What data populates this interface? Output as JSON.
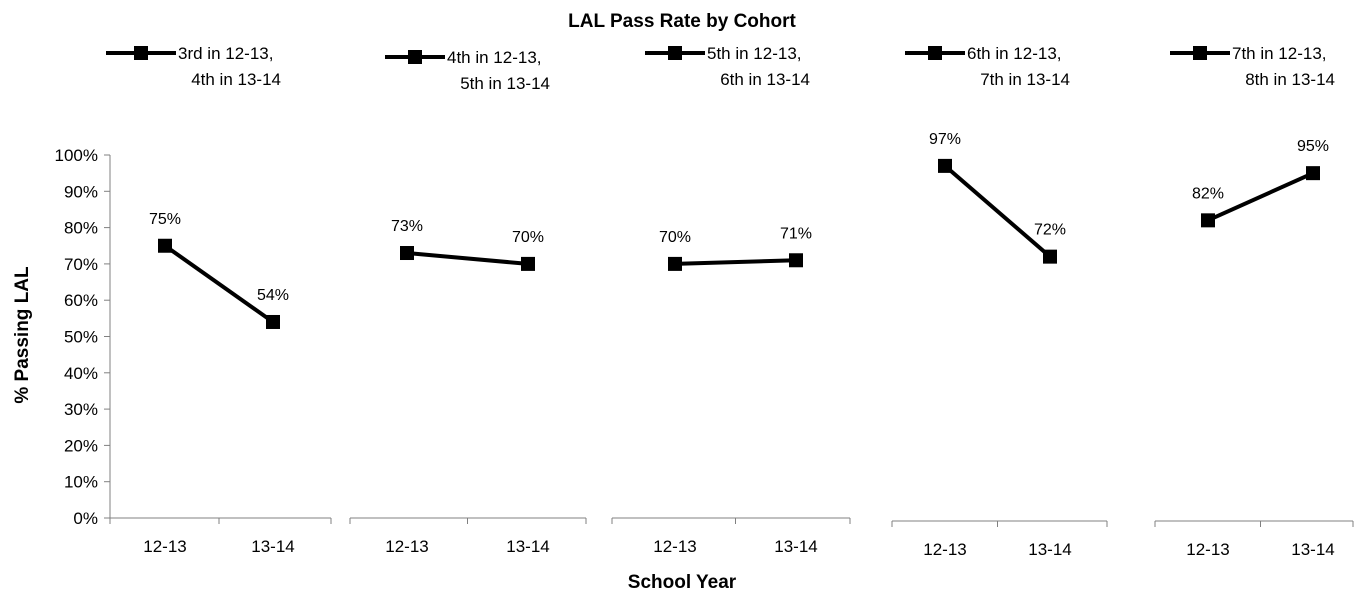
{
  "chart_data": {
    "type": "line",
    "title": "LAL Pass Rate by Cohort",
    "xlabel": "School Year",
    "ylabel": "% Passing LAL",
    "ylim": [
      0,
      100
    ],
    "y_ticks": [
      "0%",
      "10%",
      "20%",
      "30%",
      "40%",
      "50%",
      "60%",
      "70%",
      "80%",
      "90%",
      "100%"
    ],
    "categories": [
      "12-13",
      "13-14"
    ],
    "series": [
      {
        "name": [
          "3rd in 12-13,",
          "4th in 13-14"
        ],
        "values": [
          75,
          54
        ],
        "labels": [
          "75%",
          "54%"
        ]
      },
      {
        "name": [
          "4th in 12-13,",
          "5th in 13-14"
        ],
        "values": [
          73,
          70
        ],
        "labels": [
          "73%",
          "70%"
        ]
      },
      {
        "name": [
          "5th in 12-13,",
          "6th in 13-14"
        ],
        "values": [
          70,
          71
        ],
        "labels": [
          "70%",
          "71%"
        ]
      },
      {
        "name": [
          "6th in 12-13,",
          "7th in 13-14"
        ],
        "values": [
          97,
          72
        ],
        "labels": [
          "97%",
          "72%"
        ]
      },
      {
        "name": [
          "7th in 12-13,",
          "8th in 13-14"
        ],
        "values": [
          82,
          95
        ],
        "labels": [
          "82%",
          "95%"
        ]
      }
    ],
    "grid": false,
    "legend": "top",
    "line_color": "#000000",
    "marker": "square"
  }
}
